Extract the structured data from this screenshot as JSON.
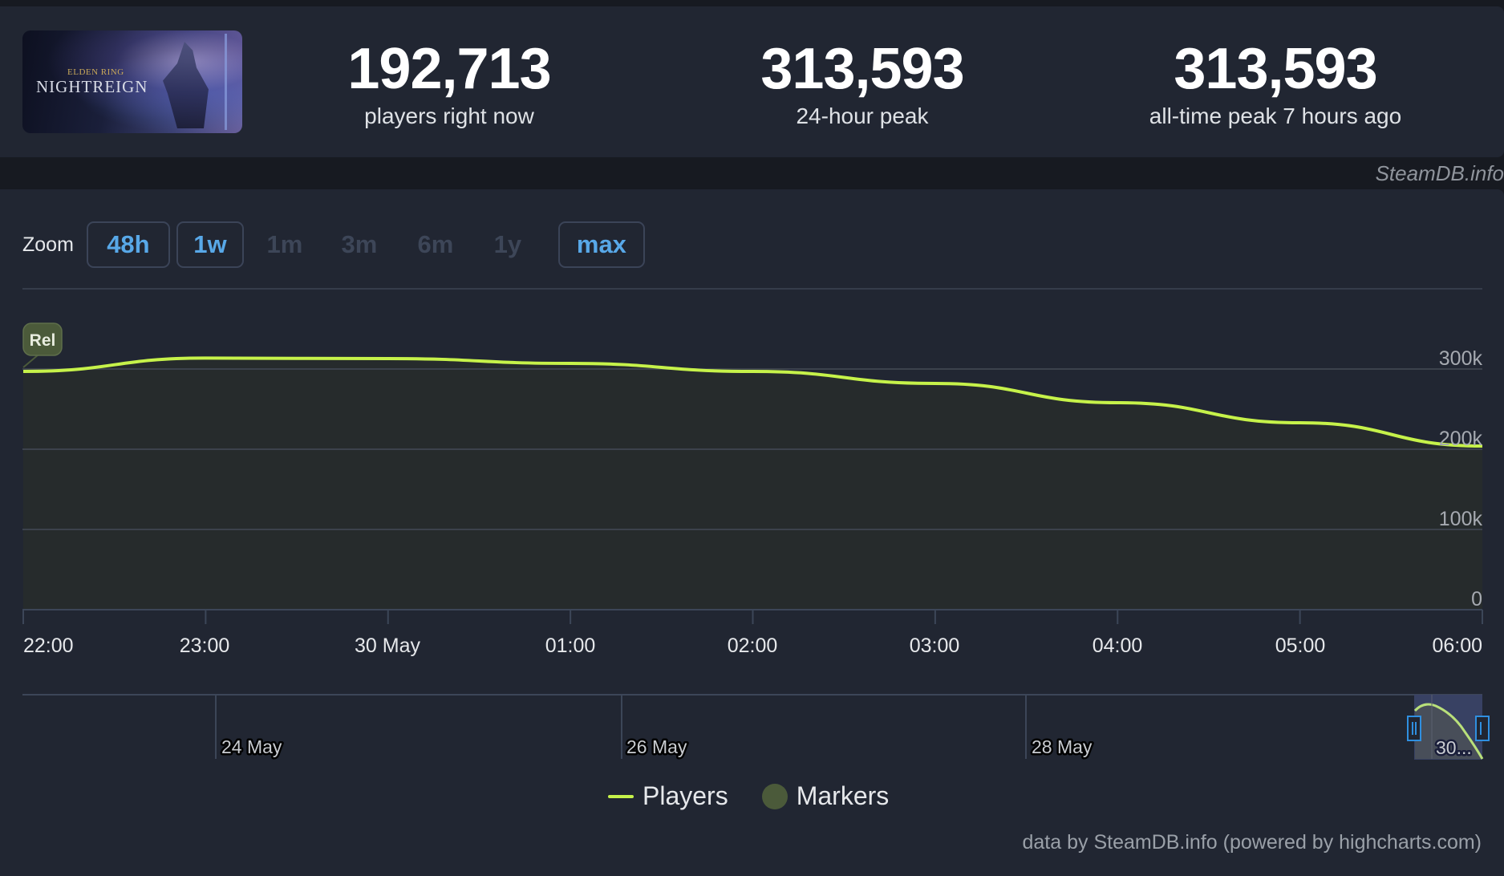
{
  "game": {
    "banner_small_text": "ELDEN RING",
    "banner_title": "NIGHTREIGN"
  },
  "stats": [
    {
      "value": "192,713",
      "label": "players right now"
    },
    {
      "value": "313,593",
      "label": "24-hour peak"
    },
    {
      "value": "313,593",
      "label": "all-time peak 7 hours ago"
    }
  ],
  "watermark": "SteamDB.info",
  "zoom": {
    "label": "Zoom",
    "buttons": [
      {
        "label": "48h",
        "state": "active"
      },
      {
        "label": "1w",
        "state": "active"
      },
      {
        "label": "1m",
        "state": "disabled"
      },
      {
        "label": "3m",
        "state": "disabled"
      },
      {
        "label": "6m",
        "state": "disabled"
      },
      {
        "label": "1y",
        "state": "disabled"
      },
      {
        "label": "max",
        "state": "active"
      }
    ]
  },
  "marker": {
    "label": "Rel"
  },
  "navigator": {
    "labels": [
      "24 May",
      "26 May",
      "28 May",
      "30..."
    ]
  },
  "legend": {
    "players": "Players",
    "markers": "Markers"
  },
  "credits": "data by SteamDB.info (powered by highcharts.com)",
  "colors": {
    "line": "#c6f24a",
    "marker": "#4b5a3a",
    "accent": "#58a8e8",
    "background": "#212632"
  },
  "chart_data": {
    "type": "area",
    "title": "",
    "xlabel": "",
    "ylabel": "",
    "x": [
      "22:00",
      "23:00",
      "30 May",
      "01:00",
      "02:00",
      "03:00",
      "04:00",
      "05:00",
      "06:00"
    ],
    "series": [
      {
        "name": "Players",
        "values": [
          297000,
          313593,
          313000,
          307000,
          297000,
          282000,
          258000,
          233000,
          204000
        ]
      }
    ],
    "y_ticks": [
      "0",
      "100k",
      "200k",
      "300k"
    ],
    "ylim": [
      0,
      360000
    ],
    "grid": true,
    "legend_position": "bottom",
    "annotations": [
      {
        "x": "22:00",
        "label": "Rel"
      }
    ],
    "navigator_ticks": [
      "24 May",
      "26 May",
      "28 May",
      "30..."
    ]
  }
}
